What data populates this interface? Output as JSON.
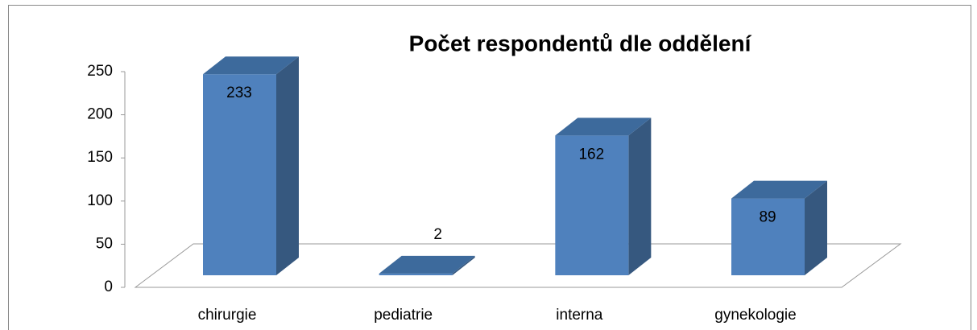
{
  "chart_data": {
    "type": "bar3d",
    "title": "Počet respondentů dle oddělení",
    "categories": [
      "chirurgie",
      "pediatrie",
      "interna",
      "gynekologie"
    ],
    "values": [
      233,
      2,
      162,
      89
    ],
    "color": "#4f81bd",
    "ylim": [
      0,
      250
    ],
    "yticks": [
      0,
      50,
      100,
      150,
      200,
      250
    ]
  }
}
